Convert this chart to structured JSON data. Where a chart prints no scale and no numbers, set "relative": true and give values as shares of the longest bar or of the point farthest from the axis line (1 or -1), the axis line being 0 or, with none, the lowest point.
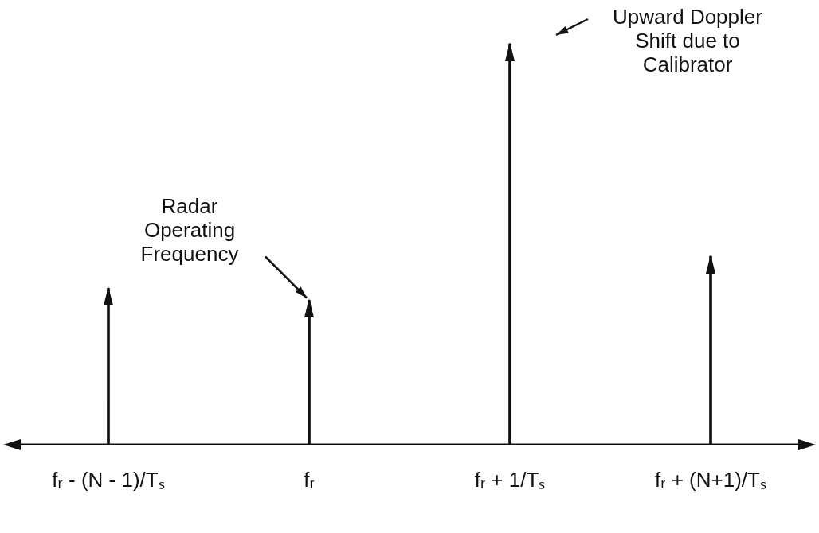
{
  "chart_data": {
    "type": "bar",
    "relative": true,
    "color": "#111111",
    "categories": [
      "fᵣ - (N - 1)/Tₛ",
      "fᵣ",
      "fᵣ + 1/Tₛ",
      "fᵣ + (N+1)/Tₛ"
    ],
    "values": [
      0.39,
      0.36,
      1,
      0.47
    ],
    "annotations": [
      {
        "text": "Radar Operating Frequency",
        "x": "fᵣ",
        "y": 0.36
      },
      "Upward Doppler Shift due to Calibrator"
    ],
    "grid": false,
    "legend": false
  }
}
